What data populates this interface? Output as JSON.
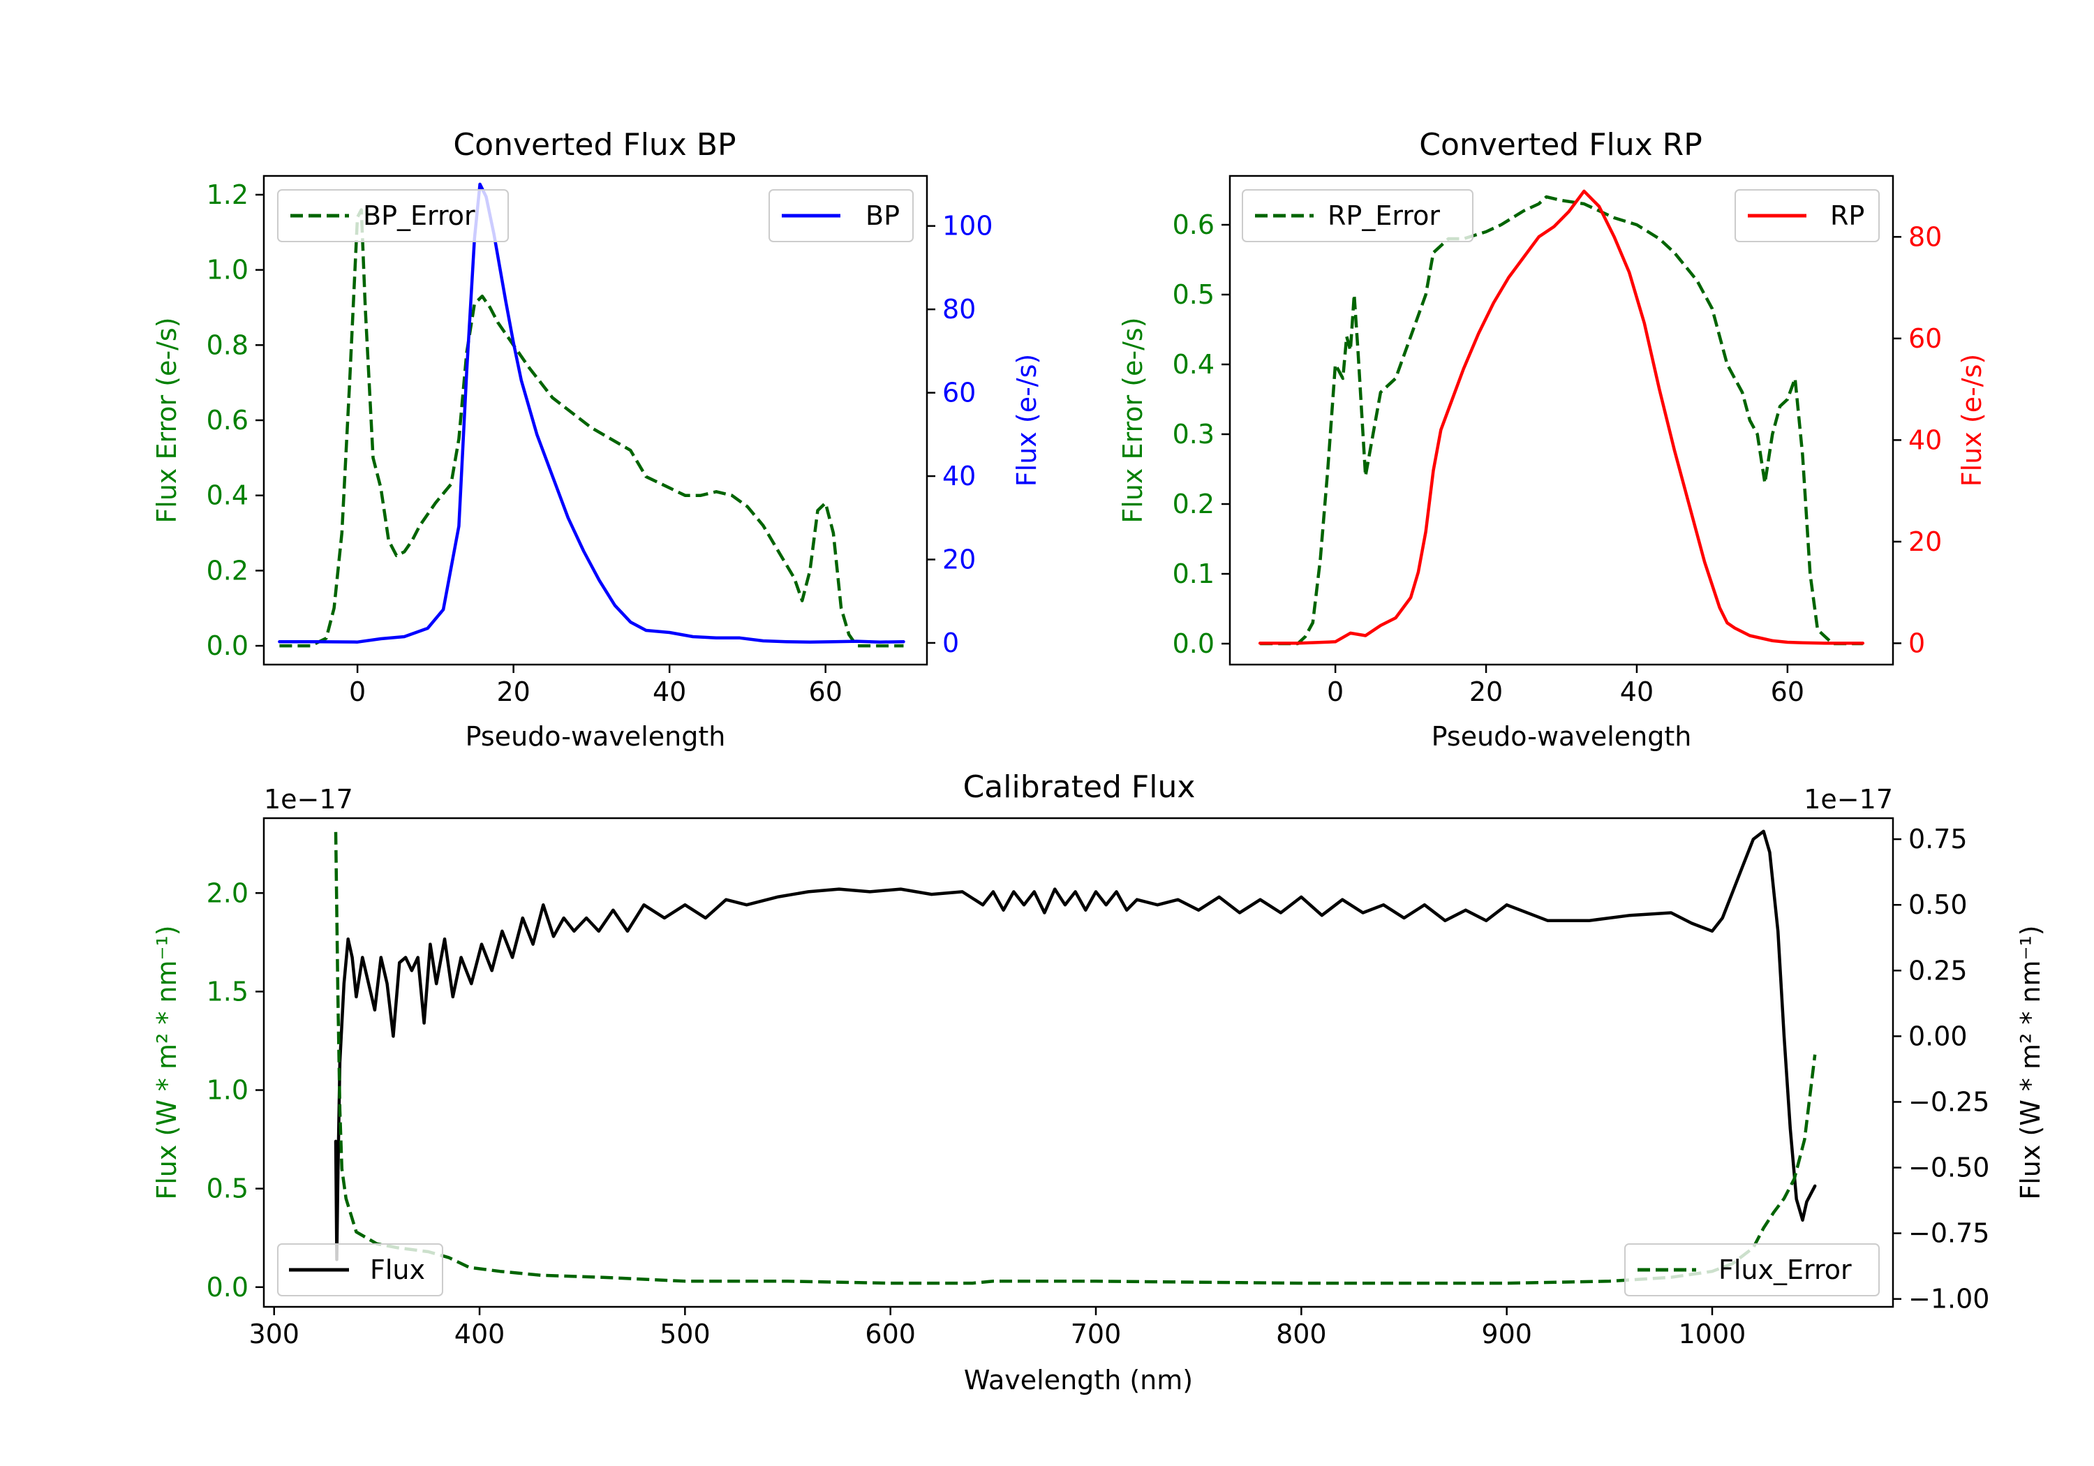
{
  "chart_data": [
    {
      "id": "bp",
      "type": "line",
      "title": "Converted Flux BP",
      "xlabel": "Pseudo-wavelength",
      "ylabel": "Flux Error (e-/s)",
      "ylabel2": "Flux (e-/s)",
      "xlim": [
        -12,
        73
      ],
      "ylim": [
        -0.05,
        1.25
      ],
      "ylim2": [
        -5.2,
        112
      ],
      "xticks": [
        "0",
        "20",
        "40",
        "60"
      ],
      "xtick_values": [
        0,
        20,
        40,
        60
      ],
      "yticks": [
        "0.0",
        "0.2",
        "0.4",
        "0.6",
        "0.8",
        "1.0",
        "1.2"
      ],
      "ytick_values": [
        0,
        0.2,
        0.4,
        0.6,
        0.8,
        1.0,
        1.2
      ],
      "yticks2": [
        "0",
        "20",
        "40",
        "60",
        "80",
        "100"
      ],
      "ytick2_values": [
        0,
        20,
        40,
        60,
        80,
        100
      ],
      "colors": {
        "left_axis": "#008000",
        "right_axis": "#0000ff",
        "error": "#006400",
        "flux": "#0000ff"
      },
      "legend_left": "BP_Error",
      "legend_right": "BP",
      "series": [
        {
          "name": "BP_Error",
          "axis": "left",
          "style": "dashed",
          "x": [
            -10,
            -6,
            -4,
            -3,
            -2,
            -1,
            0,
            0.5,
            1,
            2,
            3,
            4,
            5,
            6,
            7,
            8,
            10,
            12,
            13,
            14,
            15,
            16,
            17,
            18,
            20,
            22,
            25,
            30,
            35,
            37,
            40,
            42,
            44,
            46,
            48,
            50,
            52,
            54,
            56,
            57,
            58,
            59,
            60,
            61,
            62,
            63,
            64,
            66,
            68,
            70
          ],
          "y": [
            0.0,
            0.0,
            0.02,
            0.1,
            0.3,
            0.7,
            1.14,
            1.16,
            0.9,
            0.5,
            0.42,
            0.28,
            0.24,
            0.25,
            0.28,
            0.32,
            0.38,
            0.43,
            0.55,
            0.78,
            0.91,
            0.93,
            0.9,
            0.86,
            0.8,
            0.74,
            0.66,
            0.58,
            0.52,
            0.45,
            0.42,
            0.4,
            0.4,
            0.41,
            0.4,
            0.37,
            0.32,
            0.25,
            0.18,
            0.12,
            0.2,
            0.36,
            0.38,
            0.3,
            0.1,
            0.03,
            0.0,
            0.0,
            0.0,
            0.0
          ]
        },
        {
          "name": "BP",
          "axis": "right",
          "style": "solid",
          "x": [
            -10,
            -5,
            0,
            3,
            6,
            9,
            11,
            13,
            14,
            15,
            15.7,
            16.5,
            17.5,
            19,
            20,
            21,
            23,
            25,
            27,
            29,
            31,
            33,
            35,
            37,
            40,
            43,
            46,
            49,
            52,
            55,
            58,
            61,
            64,
            67,
            70
          ],
          "y": [
            0.3,
            0.3,
            0.2,
            1.0,
            1.5,
            3.5,
            8,
            28,
            65,
            97,
            110,
            107,
            98,
            82,
            72,
            63,
            50,
            40,
            30,
            22,
            15,
            9,
            5,
            3,
            2.5,
            1.5,
            1.2,
            1.2,
            0.5,
            0.3,
            0.2,
            0.3,
            0.4,
            0.2,
            0.3
          ]
        }
      ]
    },
    {
      "id": "rp",
      "type": "line",
      "title": "Converted Flux RP",
      "xlabel": "Pseudo-wavelength",
      "ylabel": "Flux Error (e-/s)",
      "ylabel2": "Flux (e-/s)",
      "xlim": [
        -14,
        74
      ],
      "ylim": [
        -0.03,
        0.67
      ],
      "ylim2": [
        -4.2,
        92
      ],
      "xticks": [
        "0",
        "20",
        "40",
        "60"
      ],
      "xtick_values": [
        0,
        20,
        40,
        60
      ],
      "yticks": [
        "0.0",
        "0.1",
        "0.2",
        "0.3",
        "0.4",
        "0.5",
        "0.6"
      ],
      "ytick_values": [
        0,
        0.1,
        0.2,
        0.3,
        0.4,
        0.5,
        0.6
      ],
      "yticks2": [
        "0",
        "20",
        "40",
        "60",
        "80"
      ],
      "ytick2_values": [
        0,
        20,
        40,
        60,
        80
      ],
      "colors": {
        "left_axis": "#008000",
        "right_axis": "#ff0000",
        "error": "#006400",
        "flux": "#ff0000"
      },
      "legend_left": "RP_Error",
      "legend_right": "RP",
      "series": [
        {
          "name": "RP_Error",
          "axis": "left",
          "style": "dashed",
          "x": [
            -10,
            -5,
            -4,
            -3,
            -2,
            -1,
            0,
            1,
            1.5,
            2,
            2.5,
            3,
            4,
            5,
            6,
            8,
            10,
            12,
            13,
            14,
            15,
            17,
            20,
            22,
            25,
            27,
            28,
            30,
            33,
            35,
            37,
            40,
            43,
            45,
            48,
            50,
            52,
            54,
            55,
            56,
            57,
            58,
            59,
            60,
            61,
            62,
            63,
            64,
            66,
            70
          ],
          "y": [
            0.0,
            0.0,
            0.01,
            0.03,
            0.12,
            0.25,
            0.4,
            0.38,
            0.44,
            0.42,
            0.5,
            0.42,
            0.24,
            0.3,
            0.36,
            0.38,
            0.44,
            0.5,
            0.56,
            0.57,
            0.58,
            0.58,
            0.59,
            0.6,
            0.62,
            0.63,
            0.64,
            0.635,
            0.63,
            0.62,
            0.61,
            0.6,
            0.58,
            0.56,
            0.52,
            0.48,
            0.4,
            0.36,
            0.32,
            0.3,
            0.23,
            0.3,
            0.34,
            0.35,
            0.38,
            0.27,
            0.1,
            0.02,
            0.0,
            0.0
          ]
        },
        {
          "name": "RP",
          "axis": "right",
          "style": "solid",
          "x": [
            -10,
            -5,
            0,
            2,
            4,
            6,
            8,
            10,
            11,
            12,
            13,
            14,
            15,
            17,
            19,
            21,
            23,
            25,
            27,
            29,
            31,
            33,
            35,
            37,
            39,
            41,
            43,
            45,
            47,
            49,
            51,
            52,
            53,
            55,
            58,
            60,
            62,
            65,
            70
          ],
          "y": [
            0,
            0,
            0.3,
            2,
            1.5,
            3.5,
            5,
            9,
            14,
            22,
            34,
            42,
            46,
            54,
            61,
            67,
            72,
            76,
            80,
            82,
            85,
            89,
            86,
            80,
            73,
            63,
            50,
            38,
            27,
            16,
            7,
            4,
            3,
            1.5,
            0.5,
            0.2,
            0.1,
            0,
            0
          ]
        }
      ]
    },
    {
      "id": "cal",
      "type": "line",
      "title": "Calibrated Flux",
      "xlabel": "Wavelength (nm)",
      "ylabel": "Flux (W * m² * nm⁻¹)",
      "ylabel2": "Flux (W * m² * nm⁻¹)",
      "offset_left": "1e−17",
      "offset_right": "1e−17",
      "xlim": [
        295,
        1088
      ],
      "ylim": [
        -0.1,
        2.38
      ],
      "ylim2": [
        -1.03,
        0.83
      ],
      "xticks": [
        "300",
        "400",
        "500",
        "600",
        "700",
        "800",
        "900",
        "1000"
      ],
      "xtick_values": [
        300,
        400,
        500,
        600,
        700,
        800,
        900,
        1000
      ],
      "yticks": [
        "0.0",
        "0.5",
        "1.0",
        "1.5",
        "2.0"
      ],
      "ytick_values": [
        0,
        0.5,
        1.0,
        1.5,
        2.0
      ],
      "yticks2": [
        "−1.00",
        "−0.75",
        "−0.50",
        "−0.25",
        "0.00",
        "0.25",
        "0.50",
        "0.75"
      ],
      "ytick2_values": [
        -1.0,
        -0.75,
        -0.5,
        -0.25,
        0.0,
        0.25,
        0.5,
        0.75
      ],
      "colors": {
        "left_axis": "#008000",
        "right_axis": "#000000",
        "error": "#006400",
        "flux": "#000000"
      },
      "legend_left": "Flux",
      "legend_right": "Flux_Error",
      "series": [
        {
          "name": "Flux",
          "axis": "right",
          "style": "solid",
          "x": [
            330,
            330.5,
            331,
            332,
            334,
            336,
            338,
            340,
            343,
            346,
            349,
            352,
            355,
            358,
            361,
            364,
            367,
            370,
            373,
            376,
            379,
            383,
            387,
            391,
            396,
            401,
            406,
            411,
            416,
            421,
            426,
            431,
            436,
            441,
            446,
            452,
            458,
            465,
            472,
            480,
            490,
            500,
            510,
            520,
            530,
            545,
            560,
            575,
            590,
            605,
            620,
            635,
            645,
            650,
            655,
            660,
            665,
            670,
            675,
            680,
            685,
            690,
            695,
            700,
            705,
            710,
            715,
            720,
            730,
            740,
            750,
            760,
            770,
            780,
            790,
            800,
            810,
            820,
            830,
            840,
            850,
            860,
            870,
            880,
            890,
            900,
            920,
            940,
            960,
            980,
            990,
            1000,
            1005,
            1010,
            1015,
            1020,
            1025,
            1028,
            1032,
            1035,
            1038,
            1041,
            1044,
            1046,
            1048,
            1050
          ],
          "y": [
            -0.4,
            -0.85,
            -0.55,
            -0.1,
            0.2,
            0.37,
            0.3,
            0.15,
            0.3,
            0.2,
            0.1,
            0.3,
            0.2,
            0.0,
            0.28,
            0.3,
            0.25,
            0.3,
            0.05,
            0.35,
            0.2,
            0.37,
            0.15,
            0.3,
            0.2,
            0.35,
            0.25,
            0.4,
            0.3,
            0.45,
            0.35,
            0.5,
            0.38,
            0.45,
            0.4,
            0.45,
            0.4,
            0.48,
            0.4,
            0.5,
            0.45,
            0.5,
            0.45,
            0.52,
            0.5,
            0.53,
            0.55,
            0.56,
            0.55,
            0.56,
            0.54,
            0.55,
            0.5,
            0.55,
            0.48,
            0.55,
            0.5,
            0.55,
            0.47,
            0.56,
            0.5,
            0.55,
            0.48,
            0.55,
            0.5,
            0.55,
            0.48,
            0.52,
            0.5,
            0.52,
            0.48,
            0.53,
            0.47,
            0.52,
            0.47,
            0.53,
            0.46,
            0.52,
            0.47,
            0.5,
            0.45,
            0.5,
            0.44,
            0.48,
            0.44,
            0.5,
            0.44,
            0.44,
            0.46,
            0.47,
            0.43,
            0.4,
            0.45,
            0.55,
            0.65,
            0.75,
            0.78,
            0.7,
            0.4,
            0.0,
            -0.35,
            -0.62,
            -0.7,
            -0.63,
            -0.6,
            -0.57
          ]
        },
        {
          "name": "Flux_Error",
          "axis": "left",
          "style": "dashed",
          "x": [
            330,
            331,
            332,
            333,
            335,
            340,
            350,
            360,
            375,
            385,
            395,
            410,
            430,
            460,
            500,
            550,
            600,
            640,
            650,
            700,
            800,
            900,
            950,
            980,
            1000,
            1010,
            1020,
            1025,
            1030,
            1035,
            1040,
            1045,
            1050
          ],
          "y": [
            2.31,
            1.5,
            0.9,
            0.6,
            0.45,
            0.28,
            0.22,
            0.2,
            0.18,
            0.15,
            0.1,
            0.08,
            0.06,
            0.05,
            0.03,
            0.03,
            0.02,
            0.02,
            0.03,
            0.03,
            0.02,
            0.02,
            0.03,
            0.05,
            0.08,
            0.12,
            0.2,
            0.3,
            0.38,
            0.45,
            0.55,
            0.75,
            1.18
          ]
        }
      ]
    }
  ]
}
